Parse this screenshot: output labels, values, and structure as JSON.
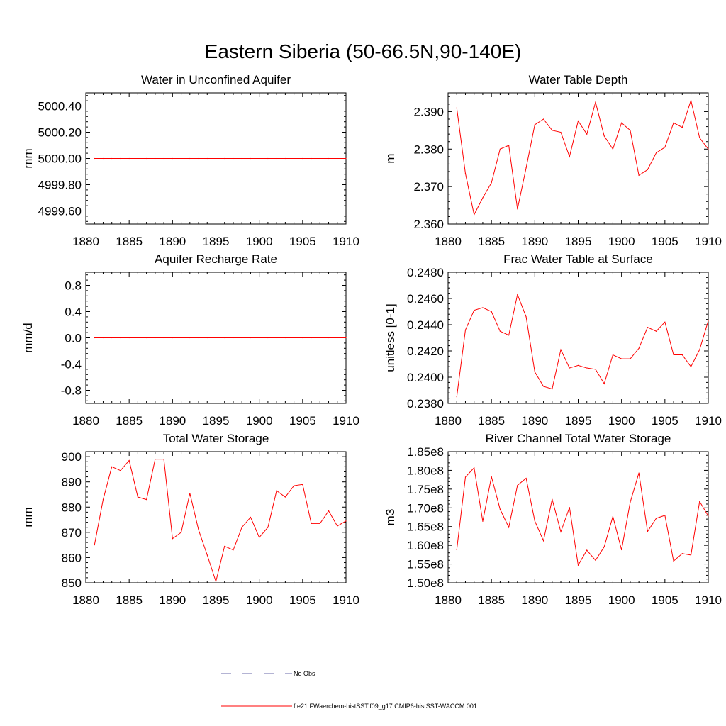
{
  "figure_title": "Eastern Siberia (50-66.5N,90-140E)",
  "legend": {
    "obs_label": "No Obs",
    "obs_color": "#6a6aa8",
    "model_label": "f.e21.FWaerchem-histSST.f09_g17.CMIP6-histSST-WACCM.001",
    "model_color": "#ff0000"
  },
  "chart_data": [
    {
      "type": "line",
      "title": "Water in Unconfined Aquifer",
      "ylabel": "mm",
      "xlim": [
        1880,
        1910
      ],
      "ylim": [
        4999.5,
        5000.5
      ],
      "xticks": [
        1880,
        1885,
        1890,
        1895,
        1900,
        1905,
        1910
      ],
      "xtick_labels": [
        "1880",
        "1885",
        "1890",
        "1895",
        "1900",
        "1905",
        "1910"
      ],
      "yticks": [
        4999.6,
        4999.8,
        5000.0,
        5000.2,
        5000.4
      ],
      "ytick_labels": [
        "4999.60",
        "4999.80",
        "5000.00",
        "5000.20",
        "5000.40"
      ],
      "x": [
        1881,
        1882,
        1883,
        1884,
        1885,
        1886,
        1887,
        1888,
        1889,
        1890,
        1891,
        1892,
        1893,
        1894,
        1895,
        1896,
        1897,
        1898,
        1899,
        1900,
        1901,
        1902,
        1903,
        1904,
        1905,
        1906,
        1907,
        1908,
        1909,
        1910
      ],
      "series": [
        {
          "values": [
            5000,
            5000,
            5000,
            5000,
            5000,
            5000,
            5000,
            5000,
            5000,
            5000,
            5000,
            5000,
            5000,
            5000,
            5000,
            5000,
            5000,
            5000,
            5000,
            5000,
            5000,
            5000,
            5000,
            5000,
            5000,
            5000,
            5000,
            5000,
            5000,
            5000
          ],
          "color": "#ff0000"
        }
      ]
    },
    {
      "type": "line",
      "title": "Water Table Depth",
      "ylabel": "m",
      "xlim": [
        1880,
        1910
      ],
      "ylim": [
        2.36,
        2.395
      ],
      "xticks": [
        1880,
        1885,
        1890,
        1895,
        1900,
        1905,
        1910
      ],
      "xtick_labels": [
        "1880",
        "1885",
        "1890",
        "1895",
        "1900",
        "1905",
        "1910"
      ],
      "yticks": [
        2.36,
        2.37,
        2.38,
        2.39
      ],
      "ytick_labels": [
        "2.360",
        "2.370",
        "2.380",
        "2.390"
      ],
      "x": [
        1881,
        1882,
        1883,
        1884,
        1885,
        1886,
        1887,
        1888,
        1889,
        1890,
        1891,
        1892,
        1893,
        1894,
        1895,
        1896,
        1897,
        1898,
        1899,
        1900,
        1901,
        1902,
        1903,
        1904,
        1905,
        1906,
        1907,
        1908,
        1909,
        1910
      ],
      "series": [
        {
          "values": [
            2.391,
            2.3735,
            2.3625,
            2.367,
            2.371,
            2.38,
            2.381,
            2.364,
            2.375,
            2.3865,
            2.388,
            2.385,
            2.3845,
            2.378,
            2.3875,
            2.384,
            2.3925,
            2.3835,
            2.38,
            2.387,
            2.385,
            2.373,
            2.3745,
            2.379,
            2.3805,
            2.387,
            2.3858,
            2.393,
            2.383,
            2.38
          ],
          "color": "#ff0000"
        }
      ]
    },
    {
      "type": "line",
      "title": "Aquifer Recharge Rate",
      "ylabel": "mm/d",
      "xlim": [
        1880,
        1910
      ],
      "ylim": [
        -1.0,
        1.0
      ],
      "xticks": [
        1880,
        1885,
        1890,
        1895,
        1900,
        1905,
        1910
      ],
      "xtick_labels": [
        "1880",
        "1885",
        "1890",
        "1895",
        "1900",
        "1905",
        "1910"
      ],
      "yticks": [
        -0.8,
        -0.4,
        0.0,
        0.4,
        0.8
      ],
      "ytick_labels": [
        "-0.8",
        "-0.4",
        "0.0",
        "0.4",
        "0.8"
      ],
      "x": [
        1881,
        1882,
        1883,
        1884,
        1885,
        1886,
        1887,
        1888,
        1889,
        1890,
        1891,
        1892,
        1893,
        1894,
        1895,
        1896,
        1897,
        1898,
        1899,
        1900,
        1901,
        1902,
        1903,
        1904,
        1905,
        1906,
        1907,
        1908,
        1909,
        1910
      ],
      "series": [
        {
          "values": [
            0,
            0,
            0,
            0,
            0,
            0,
            0,
            0,
            0,
            0,
            0,
            0,
            0,
            0,
            0,
            0,
            0,
            0,
            0,
            0,
            0,
            0,
            0,
            0,
            0,
            0,
            0,
            0,
            0,
            0
          ],
          "color": "#ff0000"
        }
      ]
    },
    {
      "type": "line",
      "title": "Frac Water Table at Surface",
      "ylabel": "unitless [0-1]",
      "xlim": [
        1880,
        1910
      ],
      "ylim": [
        0.238,
        0.248
      ],
      "xticks": [
        1880,
        1885,
        1890,
        1895,
        1900,
        1905,
        1910
      ],
      "xtick_labels": [
        "1880",
        "1885",
        "1890",
        "1895",
        "1900",
        "1905",
        "1910"
      ],
      "yticks": [
        0.238,
        0.24,
        0.242,
        0.244,
        0.246,
        0.248
      ],
      "ytick_labels": [
        "0.2380",
        "0.2400",
        "0.2420",
        "0.2440",
        "0.2460",
        "0.2480"
      ],
      "x": [
        1881,
        1882,
        1883,
        1884,
        1885,
        1886,
        1887,
        1888,
        1889,
        1890,
        1891,
        1892,
        1893,
        1894,
        1895,
        1896,
        1897,
        1898,
        1899,
        1900,
        1901,
        1902,
        1903,
        1904,
        1905,
        1906,
        1907,
        1908,
        1909,
        1910
      ],
      "series": [
        {
          "values": [
            0.2385,
            0.2436,
            0.2451,
            0.2453,
            0.245,
            0.2435,
            0.2432,
            0.2463,
            0.2446,
            0.2404,
            0.2393,
            0.2391,
            0.2421,
            0.2407,
            0.2409,
            0.2407,
            0.2406,
            0.2395,
            0.2417,
            0.2414,
            0.2414,
            0.2422,
            0.2438,
            0.2435,
            0.2442,
            0.2417,
            0.2417,
            0.2408,
            0.2421,
            0.2443
          ],
          "color": "#ff0000"
        }
      ]
    },
    {
      "type": "line",
      "title": "Total Water Storage",
      "ylabel": "mm",
      "xlim": [
        1880,
        1910
      ],
      "ylim": [
        850,
        902
      ],
      "xticks": [
        1880,
        1885,
        1890,
        1895,
        1900,
        1905,
        1910
      ],
      "xtick_labels": [
        "1880",
        "1885",
        "1890",
        "1895",
        "1900",
        "1905",
        "1910"
      ],
      "yticks": [
        850,
        860,
        870,
        880,
        890,
        900
      ],
      "ytick_labels": [
        "850",
        "860",
        "870",
        "880",
        "890",
        "900"
      ],
      "x": [
        1881,
        1882,
        1883,
        1884,
        1885,
        1886,
        1887,
        1888,
        1889,
        1890,
        1891,
        1892,
        1893,
        1894,
        1895,
        1896,
        1897,
        1898,
        1899,
        1900,
        1901,
        1902,
        1903,
        1904,
        1905,
        1906,
        1907,
        1908,
        1909,
        1910
      ],
      "series": [
        {
          "values": [
            865,
            883,
            896,
            894.5,
            898.5,
            884,
            883,
            899,
            899,
            867.5,
            870,
            885.5,
            871,
            861,
            850.5,
            864.5,
            863,
            872,
            876,
            868,
            872,
            886.5,
            884,
            888.5,
            889,
            873.5,
            873.5,
            878.5,
            872.5,
            874.5
          ],
          "color": "#ff0000"
        }
      ]
    },
    {
      "type": "line",
      "title": "River Channel Total Water Storage",
      "ylabel": "m3",
      "xlim": [
        1880,
        1910
      ],
      "ylim": [
        150000000,
        185000000
      ],
      "xticks": [
        1880,
        1885,
        1890,
        1895,
        1900,
        1905,
        1910
      ],
      "xtick_labels": [
        "1880",
        "1885",
        "1890",
        "1895",
        "1900",
        "1905",
        "1910"
      ],
      "yticks": [
        150000000,
        155000000,
        160000000,
        165000000,
        170000000,
        175000000,
        180000000,
        185000000
      ],
      "ytick_labels": [
        "1.50e8",
        "1.55e8",
        "1.60e8",
        "1.65e8",
        "1.70e8",
        "1.75e8",
        "1.80e8",
        "1.85e8"
      ],
      "x": [
        1881,
        1882,
        1883,
        1884,
        1885,
        1886,
        1887,
        1888,
        1889,
        1890,
        1891,
        1892,
        1893,
        1894,
        1895,
        1896,
        1897,
        1898,
        1899,
        1900,
        1901,
        1902,
        1903,
        1904,
        1905,
        1906,
        1907,
        1908,
        1909,
        1910
      ],
      "series": [
        {
          "values": [
            158800000,
            178200000,
            180700000,
            166400000,
            178300000,
            169600000,
            164800000,
            176000000,
            177900000,
            166500000,
            161200000,
            172300000,
            163600000,
            170100000,
            154700000,
            158700000,
            156000000,
            159600000,
            167700000,
            158800000,
            171500000,
            179300000,
            163700000,
            167200000,
            168000000,
            155800000,
            157800000,
            157400000,
            171700000,
            167800000
          ],
          "color": "#ff0000"
        }
      ]
    }
  ]
}
